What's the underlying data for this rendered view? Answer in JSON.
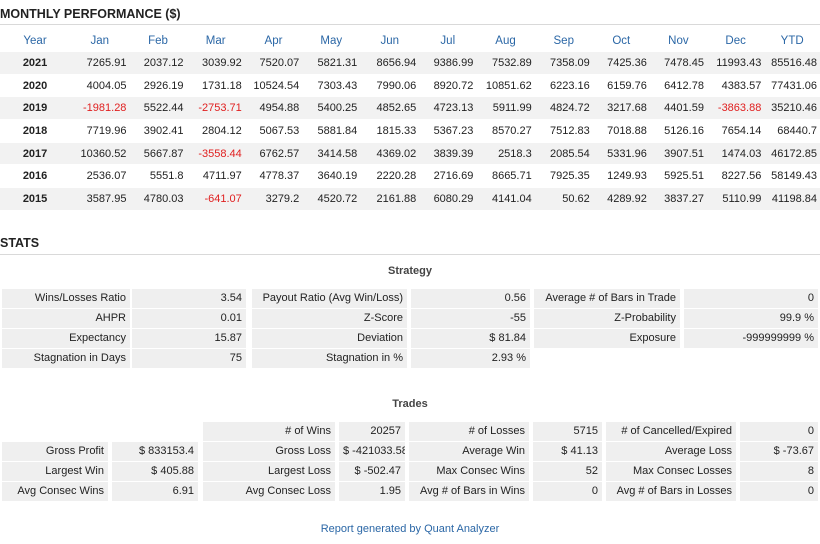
{
  "monthly": {
    "title": "MONTHLY PERFORMANCE ($)",
    "headers": [
      "Year",
      "Jan",
      "Feb",
      "Mar",
      "Apr",
      "May",
      "Jun",
      "Jul",
      "Aug",
      "Sep",
      "Oct",
      "Nov",
      "Dec",
      "YTD"
    ],
    "rows": [
      [
        "2021",
        "7265.91",
        "2037.12",
        "3039.92",
        "7520.07",
        "5821.31",
        "8656.94",
        "9386.99",
        "7532.89",
        "7358.09",
        "7425.36",
        "7478.45",
        "11993.43",
        "85516.48"
      ],
      [
        "2020",
        "4004.05",
        "2926.19",
        "1731.18",
        "10524.54",
        "7303.43",
        "7990.06",
        "8920.72",
        "10851.62",
        "6223.16",
        "6159.76",
        "6412.78",
        "4383.57",
        "77431.06"
      ],
      [
        "2019",
        "-1981.28",
        "5522.44",
        "-2753.71",
        "4954.88",
        "5400.25",
        "4852.65",
        "4723.13",
        "5911.99",
        "4824.72",
        "3217.68",
        "4401.59",
        "-3863.88",
        "35210.46"
      ],
      [
        "2018",
        "7719.96",
        "3902.41",
        "2804.12",
        "5067.53",
        "5881.84",
        "1815.33",
        "5367.23",
        "8570.27",
        "7512.83",
        "7018.88",
        "5126.16",
        "7654.14",
        "68440.7"
      ],
      [
        "2017",
        "10360.52",
        "5667.87",
        "-3558.44",
        "6762.57",
        "3414.58",
        "4369.02",
        "3839.39",
        "2518.3",
        "2085.54",
        "5331.96",
        "3907.51",
        "1474.03",
        "46172.85"
      ],
      [
        "2016",
        "2536.07",
        "5551.8",
        "4711.97",
        "4778.37",
        "3640.19",
        "2220.28",
        "2716.69",
        "8665.71",
        "7925.35",
        "1249.93",
        "5925.51",
        "8227.56",
        "58149.43"
      ],
      [
        "2015",
        "3587.95",
        "4780.03",
        "-641.07",
        "3279.2",
        "4520.72",
        "2161.88",
        "6080.29",
        "4141.04",
        "50.62",
        "4289.92",
        "3837.27",
        "5110.99",
        "41198.84"
      ]
    ],
    "negative_color": "#e02020"
  },
  "stats": {
    "title": "STATS",
    "strategy": {
      "title": "Strategy",
      "rows": [
        [
          "Wins/Losses Ratio",
          "3.54",
          "Payout Ratio (Avg Win/Loss)",
          "0.56",
          "Average # of Bars in Trade",
          "0"
        ],
        [
          "AHPR",
          "0.01",
          "Z-Score",
          "-55",
          "Z-Probability",
          "99.9 %"
        ],
        [
          "Expectancy",
          "15.87",
          "Deviation",
          "$ 81.84",
          "Exposure",
          "-999999999 %"
        ],
        [
          "Stagnation in Days",
          "75",
          "Stagnation in %",
          "2.93 %"
        ]
      ]
    },
    "trades": {
      "title": "Trades",
      "header_row": [
        "# of Wins",
        "20257",
        "# of Losses",
        "5715",
        "# of Cancelled/Expired",
        "0"
      ],
      "rows": [
        [
          "Gross Profit",
          "$ 833153.4",
          "Gross Loss",
          "$ -421033.58",
          "Average Win",
          "$ 41.13",
          "Average Loss",
          "$ -73.67"
        ],
        [
          "Largest Win",
          "$ 405.88",
          "Largest Loss",
          "$ -502.47",
          "Max Consec Wins",
          "52",
          "Max Consec Losses",
          "8"
        ],
        [
          "Avg Consec Wins",
          "6.91",
          "Avg Consec Loss",
          "1.95",
          "Avg # of Bars in Wins",
          "0",
          "Avg # of Bars in Losses",
          "0"
        ]
      ]
    }
  },
  "footer": "Report generated by Quant Analyzer",
  "colors": {
    "accent": "#2b67a6",
    "cell_bg": "#efefef",
    "stripe": "#f2f2f2"
  }
}
